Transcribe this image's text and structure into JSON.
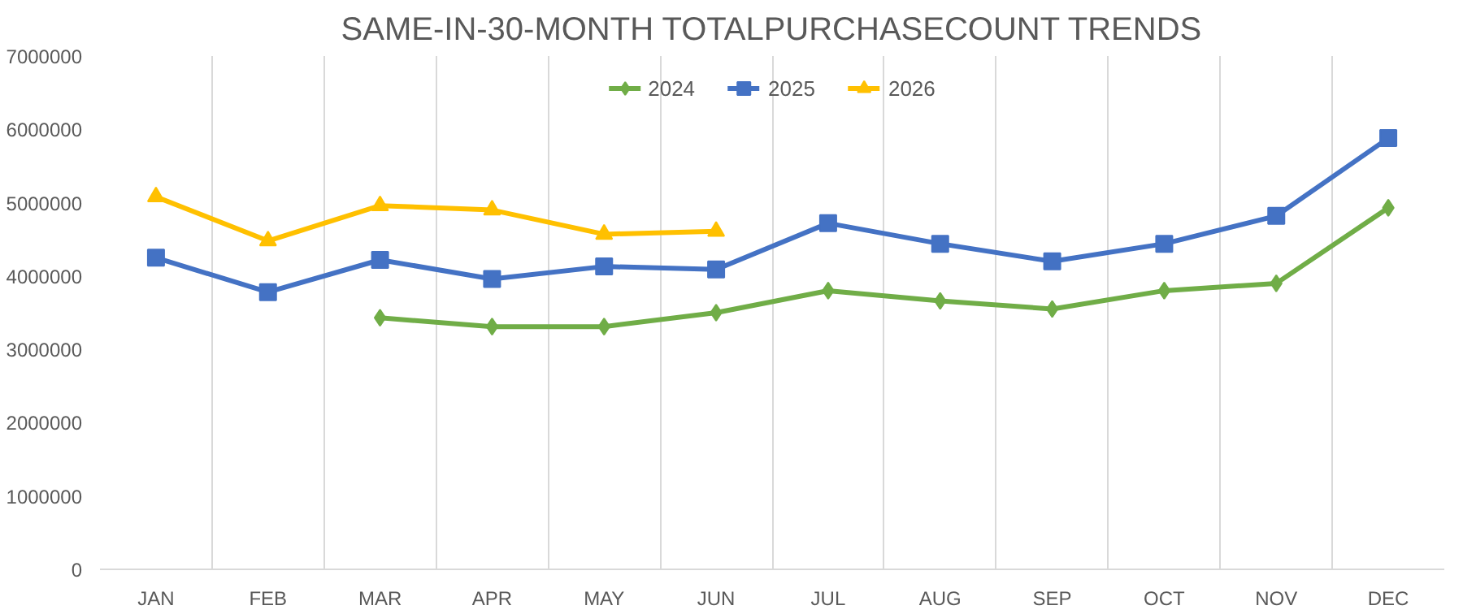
{
  "chart_data": {
    "type": "line",
    "title": "SAME-IN-30-MONTH TOTALPURCHASECOUNT TRENDS",
    "categories": [
      "JAN",
      "FEB",
      "MAR",
      "APR",
      "MAY",
      "JUN",
      "JUL",
      "AUG",
      "SEP",
      "OCT",
      "NOV",
      "DEC"
    ],
    "series": [
      {
        "name": "2024",
        "color": "#70ad47",
        "marker": "diamond",
        "values": [
          null,
          null,
          3430000,
          3310000,
          3310000,
          3500000,
          3800000,
          3660000,
          3550000,
          3800000,
          3900000,
          4930000
        ]
      },
      {
        "name": "2025",
        "color": "#4472c4",
        "marker": "square",
        "values": [
          4250000,
          3780000,
          4220000,
          3960000,
          4130000,
          4090000,
          4720000,
          4440000,
          4200000,
          4440000,
          4820000,
          5880000
        ]
      },
      {
        "name": "2026",
        "color": "#ffc000",
        "marker": "triangle",
        "values": [
          5080000,
          4480000,
          4960000,
          4900000,
          4570000,
          4610000,
          null,
          null,
          null,
          null,
          null,
          null
        ]
      }
    ],
    "ylim": [
      0,
      7000000
    ],
    "yticks": [
      0,
      1000000,
      2000000,
      3000000,
      4000000,
      5000000,
      6000000,
      7000000
    ],
    "grid": "x",
    "legend": "top",
    "line_style": "solid"
  }
}
